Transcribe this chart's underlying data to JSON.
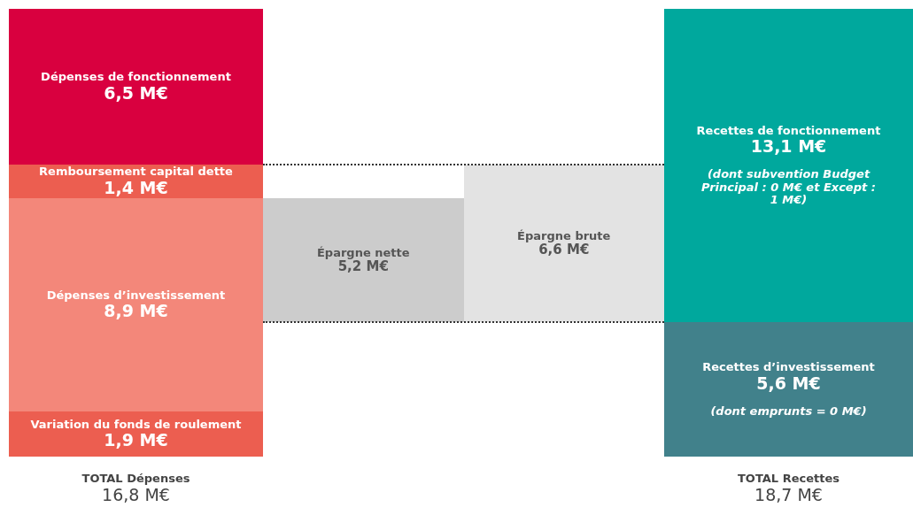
{
  "chart_data": {
    "type": "other",
    "categories": [
      "Dépenses de fonctionnement",
      "Remboursement capital dette",
      "Dépenses d’investissement",
      "Variation du fonds de roulement",
      "Épargne nette",
      "Épargne brute",
      "Recettes de fonctionnement",
      "Recettes d’investissement"
    ],
    "series": [
      {
        "values": [
          6.5,
          1.4,
          8.9,
          1.9,
          null,
          null,
          null,
          null
        ],
        "value_labels": [
          "6,5 M€",
          "1,4 M€",
          "8,9 M€",
          "1,9 M€",
          null,
          null,
          null,
          null
        ],
        "colors": [
          "#d9003f",
          "#ec5e50",
          "#f3877a",
          "#ec5e50",
          null,
          null,
          null,
          null
        ]
      },
      {
        "values": [
          null,
          null,
          null,
          null,
          5.2,
          6.6,
          null,
          null
        ],
        "value_labels": [
          null,
          null,
          null,
          null,
          "5,2 M€",
          "6,6 M€",
          null,
          null
        ],
        "colors": [
          null,
          null,
          null,
          null,
          "#cccccc",
          "#e3e3e3",
          null,
          null
        ]
      },
      {
        "values": [
          null,
          null,
          null,
          null,
          null,
          null,
          13.1,
          5.6
        ],
        "value_labels": [
          null,
          null,
          null,
          null,
          null,
          null,
          "13,1 M€",
          "5,6 M€"
        ],
        "colors": [
          null,
          null,
          null,
          null,
          null,
          null,
          "#00a89d",
          "#41818b"
        ]
      }
    ],
    "totals": [
      "16,8 M€",
      null,
      "18,7 M€"
    ],
    "annotations": [
      {
        "text": "(dont subvention Budget Principal : 0 M€ et Except : 1 M€)",
        "x": "Recettes de fonctionnement"
      },
      {
        "text": "(dont emprunts =  0 M€)",
        "x": "Recettes d’investissement"
      },
      "TOTAL Dépenses",
      "TOTAL Recettes"
    ]
  }
}
